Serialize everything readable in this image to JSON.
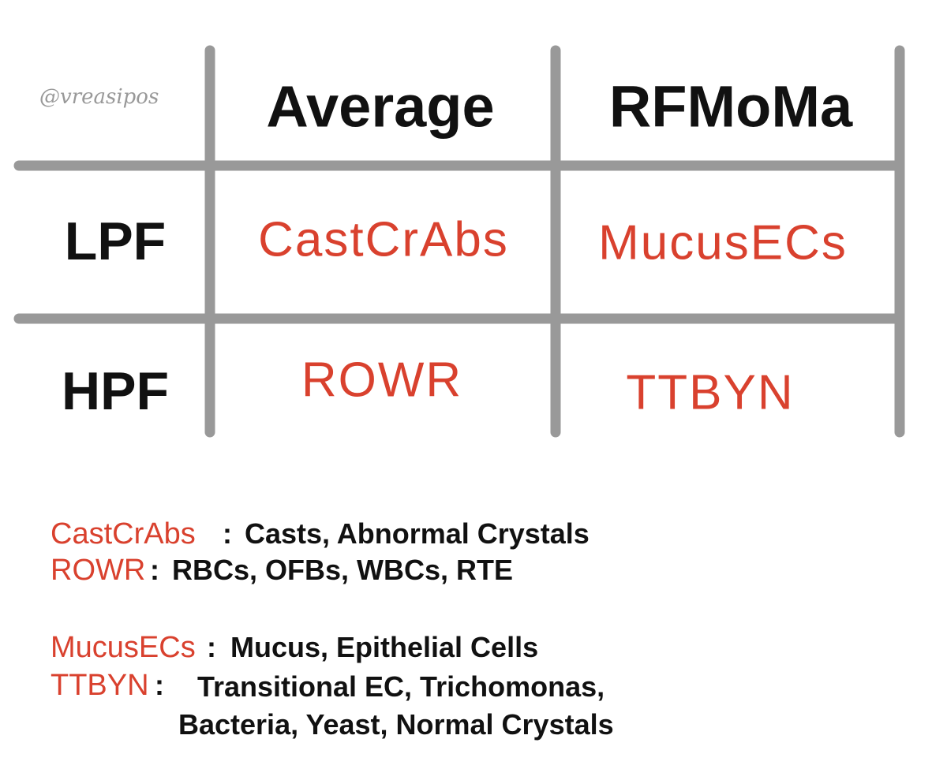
{
  "watermark": "@vreasipos",
  "table": {
    "header": [
      "Average",
      "RFMoMa"
    ],
    "rows": [
      [
        "LPF",
        "CastCrAbs",
        "MucusECs"
      ],
      [
        "HPF",
        "ROWR",
        "TTBYN"
      ]
    ]
  },
  "legend": {
    "separator": ":",
    "items": [
      {
        "term": "CastCrAbs",
        "lines": [
          "Casts, Abnormal Crystals"
        ]
      },
      {
        "term": "ROWR",
        "lines": [
          "RBCs, OFBs, WBCs, RTE"
        ]
      },
      {
        "term": "MucusECs",
        "lines": [
          "Mucus, Epithelial Cells"
        ]
      },
      {
        "term": "TTBYN",
        "lines": [
          "Transitional EC, Trichomonas,",
          "Bacteria, Yeast, Normal Crystals"
        ]
      }
    ]
  }
}
